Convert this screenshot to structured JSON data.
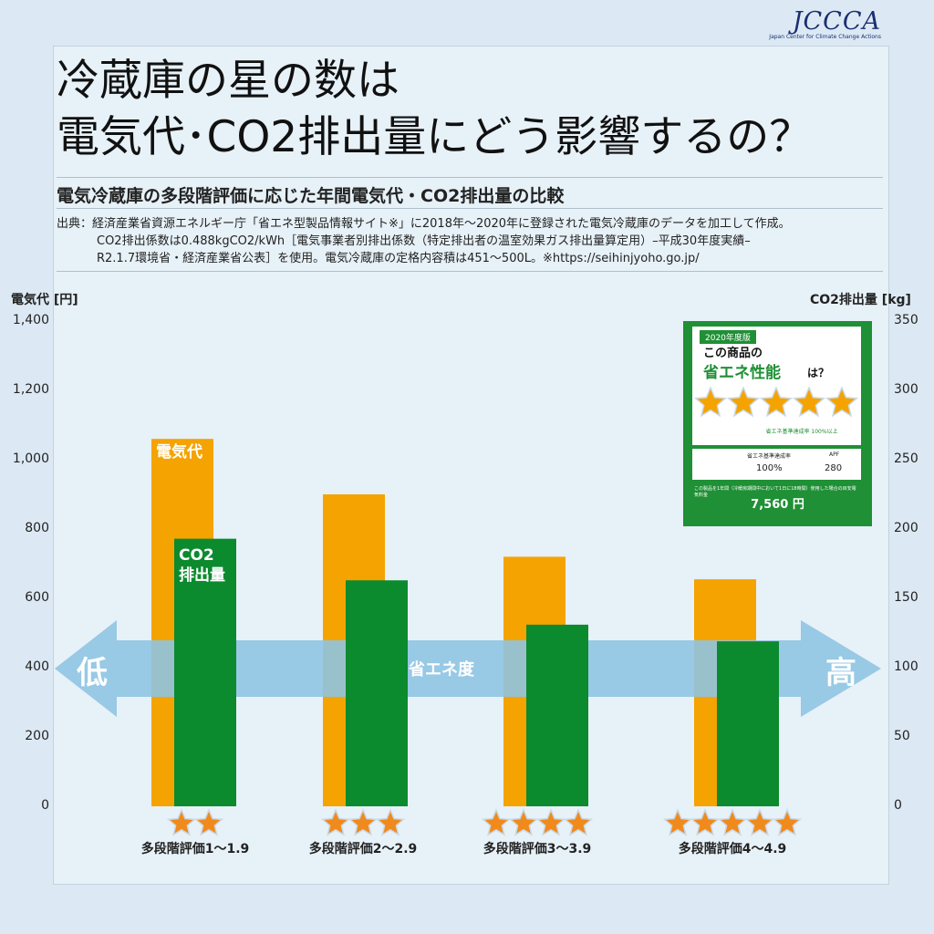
{
  "logo": {
    "mark": "JCCCA",
    "sub": "Japan Center for Climate Change Actions"
  },
  "title": {
    "line1": "冷蔵庫の星の数は",
    "line2": "電気代･CO2排出量にどう影響するの？"
  },
  "subtitle": "電気冷蔵庫の多段階評価に応じた年間電気代・CO2排出量の比較",
  "source": {
    "line1": "出典：経済産業省資源エネルギー庁「省エネ型製品情報サイト※」に2018年～2020年に登録された電気冷蔵庫のデータを加工して作成。",
    "line2": "CO2排出係数は0.488kgCO2/kWh［電気事業者別排出係数（特定排出者の温室効果ガス排出量算定用）–平成30年度実績–",
    "line3": "R2.1.7環境省・経済産業省公表］を使用。電気冷蔵庫の定格内容積は451～500L。※https://seihinjyoho.go.jp/"
  },
  "colors": {
    "cost": "#f5a300",
    "co2": "#0c8a2e",
    "arrow": "#8fc4e2",
    "background": "#dce9f4"
  },
  "chart_data": {
    "type": "bar",
    "categories": [
      "多段階評価1～1.9",
      "多段階評価2～2.9",
      "多段階評価3～3.9",
      "多段階評価4～4.9"
    ],
    "star_counts": [
      2,
      3,
      4,
      5
    ],
    "series": [
      {
        "name": "電気代",
        "axis": "left",
        "values": [
          1060,
          900,
          720,
          655
        ]
      },
      {
        "name": "CO2排出量",
        "axis": "right",
        "values": [
          193,
          163,
          131,
          119
        ]
      }
    ],
    "ylabel_left": "電気代 [円]",
    "ylabel_right": "CO2排出量 [kg]",
    "ylim_left": [
      0,
      1400
    ],
    "ylim_right": [
      0,
      350
    ],
    "yticks_left": [
      "0",
      "200",
      "400",
      "600",
      "800",
      "1,000",
      "1,200",
      "1,400"
    ],
    "yticks_right": [
      "0",
      "50",
      "100",
      "150",
      "200",
      "250",
      "300",
      "350"
    ],
    "bar_label_cost": "電気代",
    "bar_label_co2_line1": "CO2",
    "bar_label_co2_line2": "排出量",
    "arrow": {
      "low": "低",
      "mid": "省エネ度",
      "high": "高"
    },
    "grid": false
  },
  "label": {
    "edition": "2020年度版",
    "question1": "この商品の",
    "question2": "省エネ性能",
    "question3": "は？",
    "star_count": 5,
    "standard_note": "省エネ基準達成率 100%以上",
    "achievement_label": "省エネ基準達成率",
    "achievement_value": "100%",
    "apf_label": "APF",
    "apf_value": "280",
    "cost_note": "この製品を1年間（冷暖房期間中において1日に18時間）使用した場合の目安電気料金",
    "cost_value": "7,560 円"
  }
}
